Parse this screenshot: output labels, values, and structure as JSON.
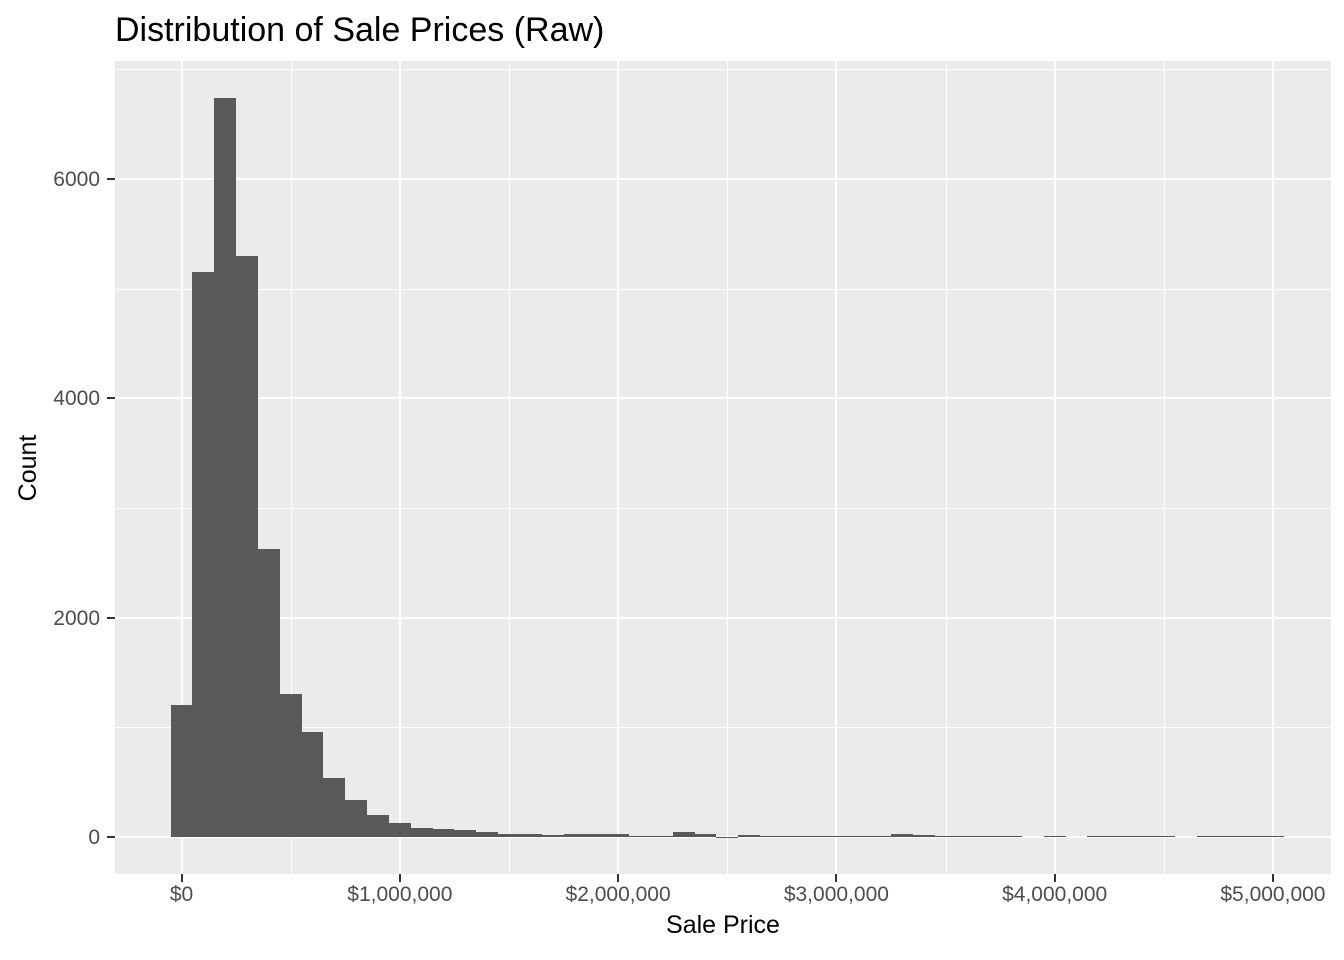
{
  "chart_data": {
    "type": "bar",
    "subtype": "histogram",
    "title": "Distribution of Sale Prices (Raw)",
    "xlabel": "Sale Price",
    "ylabel": "Count",
    "legend_position": "none",
    "grid": true,
    "bin_width": 100000,
    "x_domain": [
      -305000,
      5266000
    ],
    "y_domain": [
      -337,
      7077
    ],
    "x_ticks": [
      {
        "value": 0,
        "label": "$0"
      },
      {
        "value": 1000000,
        "label": "$1,000,000"
      },
      {
        "value": 2000000,
        "label": "$2,000,000"
      },
      {
        "value": 3000000,
        "label": "$3,000,000"
      },
      {
        "value": 4000000,
        "label": "$4,000,000"
      },
      {
        "value": 5000000,
        "label": "$5,000,000"
      }
    ],
    "y_ticks": [
      {
        "value": 0,
        "label": "0"
      },
      {
        "value": 2000,
        "label": "2000"
      },
      {
        "value": 4000,
        "label": "4000"
      },
      {
        "value": 6000,
        "label": "6000"
      }
    ],
    "x_minor": [
      500000,
      1500000,
      2500000,
      3500000,
      4500000
    ],
    "y_minor": [
      1000,
      3000,
      5000,
      7000
    ],
    "bins": [
      {
        "x": 0,
        "count": 1200
      },
      {
        "x": 100000,
        "count": 5150
      },
      {
        "x": 200000,
        "count": 6740
      },
      {
        "x": 300000,
        "count": 5300
      },
      {
        "x": 400000,
        "count": 2630
      },
      {
        "x": 500000,
        "count": 1300
      },
      {
        "x": 600000,
        "count": 960
      },
      {
        "x": 700000,
        "count": 540
      },
      {
        "x": 800000,
        "count": 340
      },
      {
        "x": 900000,
        "count": 200
      },
      {
        "x": 1000000,
        "count": 130
      },
      {
        "x": 1100000,
        "count": 80
      },
      {
        "x": 1200000,
        "count": 70
      },
      {
        "x": 1300000,
        "count": 60
      },
      {
        "x": 1400000,
        "count": 45
      },
      {
        "x": 1500000,
        "count": 30
      },
      {
        "x": 1600000,
        "count": 30
      },
      {
        "x": 1700000,
        "count": 20
      },
      {
        "x": 1800000,
        "count": 25
      },
      {
        "x": 1900000,
        "count": 30
      },
      {
        "x": 2000000,
        "count": 30
      },
      {
        "x": 2100000,
        "count": 12
      },
      {
        "x": 2200000,
        "count": 12
      },
      {
        "x": 2300000,
        "count": 45
      },
      {
        "x": 2400000,
        "count": 30
      },
      {
        "x": 2500000,
        "count": 4
      },
      {
        "x": 2600000,
        "count": 15
      },
      {
        "x": 2700000,
        "count": 6
      },
      {
        "x": 2800000,
        "count": 10
      },
      {
        "x": 2900000,
        "count": 12
      },
      {
        "x": 3000000,
        "count": 6
      },
      {
        "x": 3100000,
        "count": 12
      },
      {
        "x": 3200000,
        "count": 6
      },
      {
        "x": 3300000,
        "count": 25
      },
      {
        "x": 3400000,
        "count": 22
      },
      {
        "x": 3500000,
        "count": 12
      },
      {
        "x": 3600000,
        "count": 8
      },
      {
        "x": 3700000,
        "count": 8
      },
      {
        "x": 3800000,
        "count": 8
      },
      {
        "x": 3900000,
        "count": 0
      },
      {
        "x": 4000000,
        "count": 8
      },
      {
        "x": 4100000,
        "count": 0
      },
      {
        "x": 4200000,
        "count": 8
      },
      {
        "x": 4300000,
        "count": 8
      },
      {
        "x": 4400000,
        "count": 8
      },
      {
        "x": 4500000,
        "count": 8
      },
      {
        "x": 4600000,
        "count": 0
      },
      {
        "x": 4700000,
        "count": 8
      },
      {
        "x": 4800000,
        "count": 8
      },
      {
        "x": 4900000,
        "count": 8
      },
      {
        "x": 5000000,
        "count": 8
      }
    ],
    "colors": {
      "bar_fill": "#595959",
      "panel_background": "#EBEBEB",
      "gridline": "#FFFFFF",
      "axis_text": "#4D4D4D",
      "tick_mark": "#333333",
      "title_text": "#000000",
      "figure_background": "#FFFFFF"
    }
  }
}
